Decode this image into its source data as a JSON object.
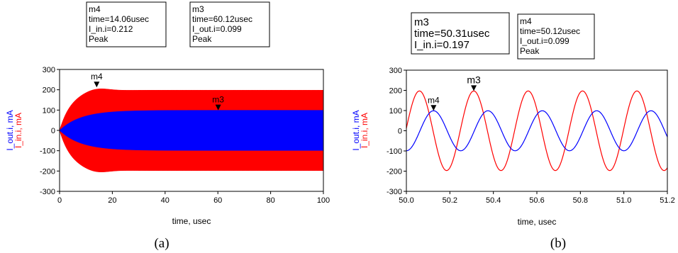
{
  "colors": {
    "in": "#ff0000",
    "out": "#0000ff"
  },
  "chart_data": [
    {
      "type": "line",
      "caption": "(a)",
      "xlabel": "time, usec",
      "ylabel_parts": [
        "I_out.i, mA",
        "I_in.i, mA"
      ],
      "xlim": [
        0,
        100
      ],
      "ylim": [
        -300,
        300
      ],
      "xticks": [
        "0",
        "20",
        "40",
        "60",
        "80",
        "100"
      ],
      "yticks": [
        "300",
        "200",
        "100",
        "0",
        "-100",
        "-200",
        "-300"
      ],
      "series": [
        {
          "name": "I_in.i, mA",
          "color": "#ff0000",
          "amplitude": 198,
          "envelope_tau_usec": 4.5,
          "overshoot_peak": 212
        },
        {
          "name": "I_out.i, mA",
          "color": "#0000ff",
          "amplitude": 99,
          "envelope_tau_usec": 8
        }
      ],
      "markers": [
        {
          "name": "m4",
          "x": 14.06,
          "y": 212
        },
        {
          "name": "m3",
          "x": 60.12,
          "y": 99
        }
      ],
      "marker_boxes": [
        {
          "lines": [
            "m4",
            "time=14.06usec",
            "I_in.i=0.212",
            "Peak"
          ]
        },
        {
          "lines": [
            "m3",
            "time=60.12usec",
            "I_out.i=0.099",
            "Peak"
          ]
        }
      ]
    },
    {
      "type": "line",
      "caption": "(b)",
      "xlabel": "time, usec",
      "ylabel_parts": [
        "I_out.i, mA",
        "I_in.i, mA"
      ],
      "xlim": [
        50.0,
        51.2
      ],
      "ylim": [
        -300,
        300
      ],
      "xticks": [
        "50.0",
        "50.2",
        "50.4",
        "50.6",
        "50.8",
        "51.0",
        "51.2"
      ],
      "yticks": [
        "300",
        "200",
        "100",
        "0",
        "-100",
        "-200",
        "-300"
      ],
      "series": [
        {
          "name": "I_in.i, mA",
          "color": "#ff0000",
          "amplitude": 197,
          "period_usec": 0.25,
          "peak_at_usec": 50.06
        },
        {
          "name": "I_out.i, mA",
          "color": "#0000ff",
          "amplitude": 99,
          "period_usec": 0.25,
          "peak_at_usec": 50.125
        }
      ],
      "markers": [
        {
          "name": "m3",
          "x": 50.31,
          "y": 197
        },
        {
          "name": "m4",
          "x": 50.125,
          "y": 99
        }
      ],
      "marker_boxes": [
        {
          "lines": [
            "m3",
            "time=50.31usec",
            "I_in.i=0.197"
          ]
        },
        {
          "lines": [
            "m4",
            "time=50.12usec",
            "I_out.i=0.099",
            "Peak"
          ]
        }
      ]
    }
  ]
}
